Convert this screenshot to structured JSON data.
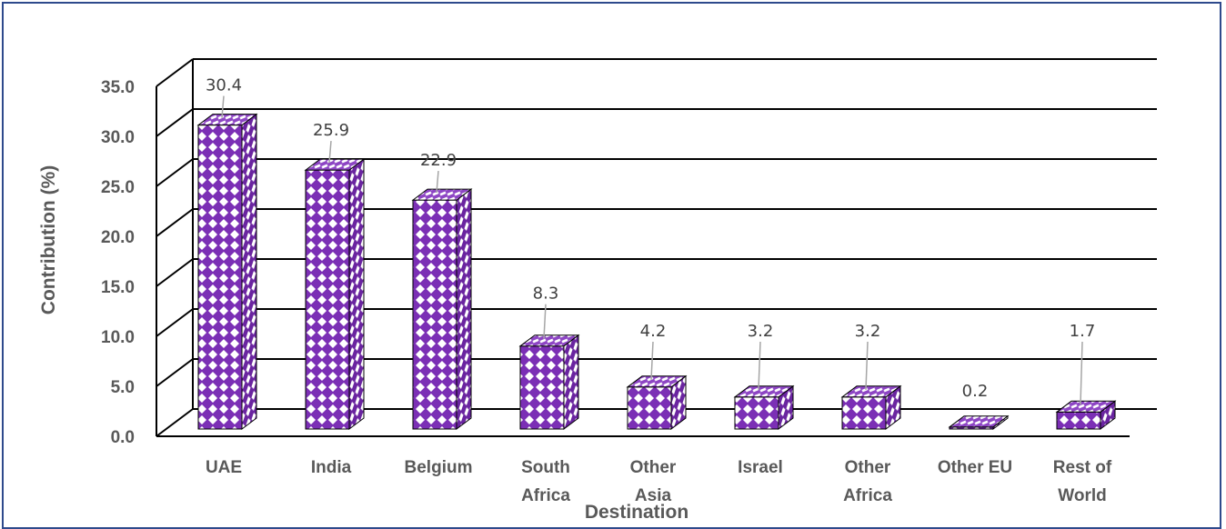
{
  "chart_data": {
    "type": "bar",
    "style": "3d-column",
    "xlabel": "Destination",
    "ylabel": "Contribution (%)",
    "ylim": [
      0,
      35
    ],
    "ytick_step": 5,
    "ytick_labels": [
      "0.0",
      "5.0",
      "10.0",
      "15.0",
      "20.0",
      "25.0",
      "30.0",
      "35.0"
    ],
    "grid": true,
    "categories": [
      [
        "UAE"
      ],
      [
        "India"
      ],
      [
        "Belgium"
      ],
      [
        "South",
        "Africa"
      ],
      [
        "Other",
        "Asia"
      ],
      [
        "Israel"
      ],
      [
        "Other",
        "Africa"
      ],
      [
        "Other EU"
      ],
      [
        "Rest of",
        "World"
      ]
    ],
    "values": [
      30.4,
      25.9,
      22.9,
      8.3,
      4.2,
      3.2,
      3.2,
      0.2,
      1.7
    ],
    "data_labels": [
      "30.4",
      "25.9",
      "22.9",
      "8.3",
      "4.2",
      "3.2",
      "3.2",
      "0.2",
      "1.7"
    ],
    "colors": {
      "bar_fill": "#7b2fb5",
      "bar_side": "#6a24a0",
      "bar_top": "#8d45c4",
      "pattern": "#ffffff",
      "gridline": "#000000",
      "text": "#595959",
      "frame": "#2e4a8c"
    }
  }
}
